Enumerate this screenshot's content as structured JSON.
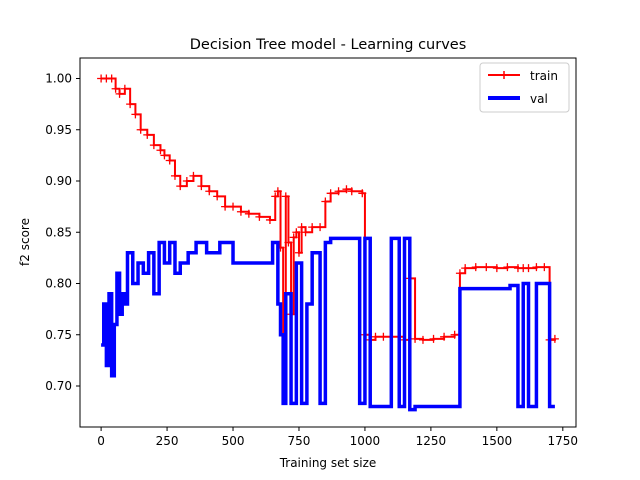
{
  "chart_data": {
    "type": "line",
    "title": "Decision Tree model - Learning curves",
    "xlabel": "Training set size",
    "ylabel": "f2 score",
    "xlim": [
      -80,
      1800
    ],
    "ylim": [
      0.66,
      1.02
    ],
    "xticks": [
      0,
      250,
      500,
      750,
      1000,
      1250,
      1500,
      1750
    ],
    "yticks": [
      0.7,
      0.75,
      0.8,
      0.85,
      0.9,
      0.95,
      1.0
    ],
    "xtick_labels": [
      "0",
      "250",
      "500",
      "750",
      "1000",
      "1250",
      "1500",
      "1750"
    ],
    "ytick_labels": [
      "0.70",
      "0.75",
      "0.80",
      "0.85",
      "0.90",
      "0.95",
      "1.00"
    ],
    "legend": {
      "position": "top-right",
      "entries": [
        "train",
        "val"
      ]
    },
    "series": [
      {
        "name": "train",
        "color": "#ff0000",
        "marker": "+",
        "x": [
          0,
          20,
          40,
          55,
          70,
          90,
          110,
          130,
          150,
          175,
          200,
          225,
          240,
          260,
          280,
          300,
          325,
          350,
          380,
          410,
          440,
          470,
          500,
          530,
          560,
          600,
          640,
          660,
          670,
          680,
          690,
          700,
          710,
          720,
          730,
          740,
          750,
          760,
          775,
          800,
          830,
          850,
          870,
          900,
          930,
          950,
          990,
          1000,
          1020,
          1040,
          1070,
          1100,
          1150,
          1170,
          1190,
          1220,
          1260,
          1300,
          1340,
          1360,
          1380,
          1420,
          1460,
          1500,
          1540,
          1580,
          1600,
          1620,
          1650,
          1680,
          1700,
          1720
        ],
        "y": [
          1.0,
          1.0,
          1.0,
          0.99,
          0.985,
          0.99,
          0.975,
          0.965,
          0.95,
          0.945,
          0.935,
          0.93,
          0.925,
          0.92,
          0.905,
          0.895,
          0.9,
          0.905,
          0.895,
          0.89,
          0.885,
          0.875,
          0.875,
          0.87,
          0.868,
          0.865,
          0.862,
          0.885,
          0.89,
          0.835,
          0.75,
          0.885,
          0.84,
          0.77,
          0.845,
          0.85,
          0.83,
          0.855,
          0.85,
          0.855,
          0.855,
          0.88,
          0.888,
          0.89,
          0.892,
          0.89,
          0.888,
          0.75,
          0.745,
          0.748,
          0.748,
          0.748,
          0.745,
          0.805,
          0.746,
          0.745,
          0.746,
          0.748,
          0.75,
          0.81,
          0.815,
          0.816,
          0.816,
          0.815,
          0.816,
          0.815,
          0.815,
          0.815,
          0.816,
          0.816,
          0.745,
          0.746
        ]
      },
      {
        "name": "val",
        "color": "#0000ff",
        "x": [
          0,
          10,
          20,
          30,
          40,
          50,
          60,
          70,
          80,
          90,
          100,
          120,
          140,
          160,
          180,
          200,
          220,
          240,
          260,
          280,
          300,
          330,
          360,
          400,
          450,
          500,
          550,
          600,
          650,
          670,
          680,
          690,
          700,
          720,
          740,
          760,
          780,
          800,
          830,
          850,
          870,
          900,
          950,
          980,
          1000,
          1020,
          1050,
          1080,
          1100,
          1130,
          1150,
          1170,
          1190,
          1200,
          1250,
          1300,
          1350,
          1360,
          1400,
          1450,
          1500,
          1550,
          1580,
          1600,
          1620,
          1650,
          1680,
          1700,
          1720
        ],
        "y": [
          0.74,
          0.78,
          0.72,
          0.79,
          0.71,
          0.76,
          0.81,
          0.77,
          0.79,
          0.78,
          0.83,
          0.8,
          0.82,
          0.81,
          0.83,
          0.79,
          0.84,
          0.82,
          0.84,
          0.81,
          0.82,
          0.83,
          0.84,
          0.83,
          0.84,
          0.82,
          0.82,
          0.82,
          0.84,
          0.78,
          0.75,
          0.683,
          0.79,
          0.683,
          0.82,
          0.683,
          0.78,
          0.83,
          0.683,
          0.84,
          0.844,
          0.844,
          0.844,
          0.683,
          0.844,
          0.68,
          0.68,
          0.68,
          0.844,
          0.68,
          0.844,
          0.677,
          0.68,
          0.68,
          0.68,
          0.68,
          0.68,
          0.795,
          0.795,
          0.795,
          0.795,
          0.798,
          0.68,
          0.8,
          0.68,
          0.8,
          0.8,
          0.68,
          0.68
        ]
      }
    ]
  }
}
